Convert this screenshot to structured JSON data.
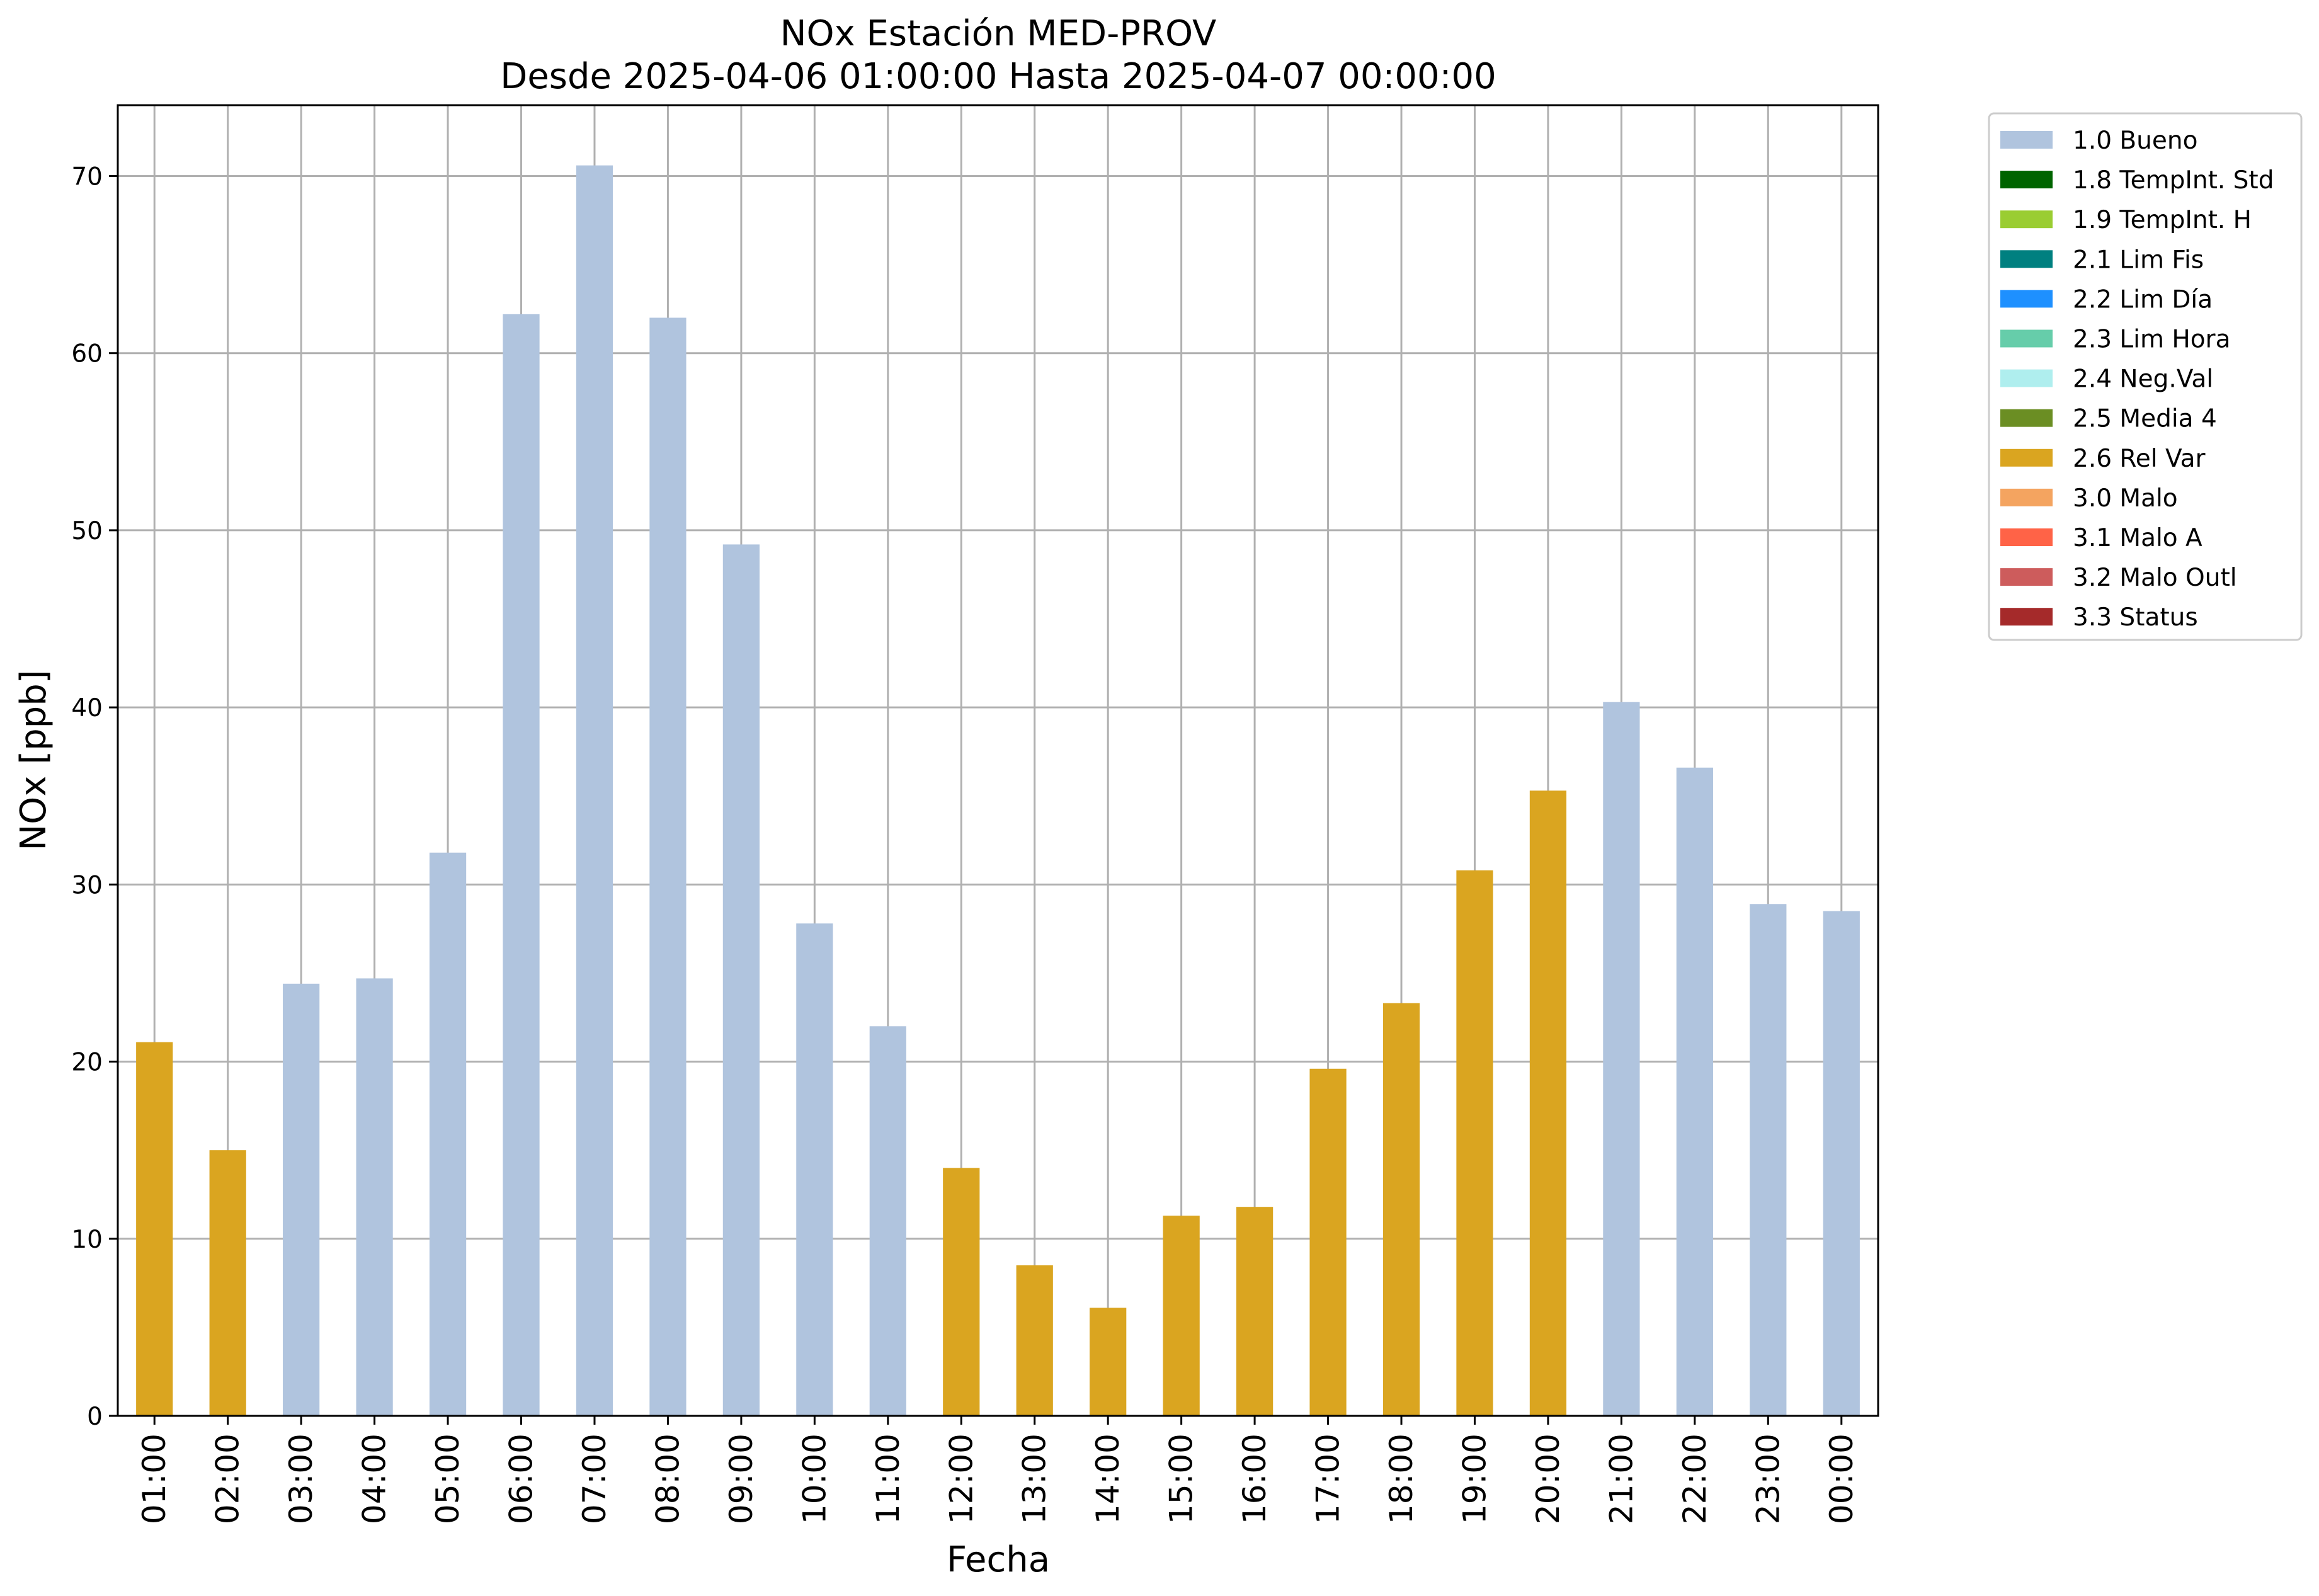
{
  "chart_data": {
    "type": "bar",
    "title": "NOx Estación MED-PROV",
    "subtitle": "Desde 2025-04-06 01:00:00 Hasta 2025-04-07 00:00:00",
    "xlabel": "Fecha",
    "ylabel": "NOx [ppb]",
    "ylim": [
      0,
      74
    ],
    "yticks": [
      0,
      10,
      20,
      30,
      40,
      50,
      60,
      70
    ],
    "grid": true,
    "legend_position": "outside-right-top",
    "categories": [
      "01:00",
      "02:00",
      "03:00",
      "04:00",
      "05:00",
      "06:00",
      "07:00",
      "08:00",
      "09:00",
      "10:00",
      "11:00",
      "12:00",
      "13:00",
      "14:00",
      "15:00",
      "16:00",
      "17:00",
      "18:00",
      "19:00",
      "20:00",
      "21:00",
      "22:00",
      "23:00",
      "00:00"
    ],
    "values": [
      21.1,
      15.0,
      24.4,
      24.7,
      31.8,
      62.2,
      70.6,
      62.0,
      49.2,
      27.8,
      22.0,
      14.0,
      8.5,
      6.1,
      11.3,
      11.8,
      19.6,
      23.3,
      30.8,
      35.3,
      40.3,
      36.6,
      28.9,
      28.5
    ],
    "flags": [
      "2.6 Rel Var",
      "2.6 Rel Var",
      "1.0 Bueno",
      "1.0 Bueno",
      "1.0 Bueno",
      "1.0 Bueno",
      "1.0 Bueno",
      "1.0 Bueno",
      "1.0 Bueno",
      "1.0 Bueno",
      "1.0 Bueno",
      "2.6 Rel Var",
      "2.6 Rel Var",
      "2.6 Rel Var",
      "2.6 Rel Var",
      "2.6 Rel Var",
      "2.6 Rel Var",
      "2.6 Rel Var",
      "2.6 Rel Var",
      "2.6 Rel Var",
      "1.0 Bueno",
      "1.0 Bueno",
      "1.0 Bueno",
      "1.0 Bueno"
    ],
    "legend": [
      {
        "label": "1.0 Bueno",
        "color": "#b0c4de"
      },
      {
        "label": "1.8 TempInt. Std",
        "color": "#006400"
      },
      {
        "label": "1.9 TempInt. H",
        "color": "#9acd32"
      },
      {
        "label": "2.1 Lim Fis",
        "color": "#008080"
      },
      {
        "label": "2.2 Lim Día",
        "color": "#1e90ff"
      },
      {
        "label": "2.3 Lim Hora",
        "color": "#66cdaa"
      },
      {
        "label": "2.4 Neg.Val",
        "color": "#afeeee"
      },
      {
        "label": "2.5 Media 4",
        "color": "#6b8e23"
      },
      {
        "label": "2.6 Rel Var",
        "color": "#daa520"
      },
      {
        "label": "3.0 Malo",
        "color": "#f4a460"
      },
      {
        "label": "3.1 Malo A",
        "color": "#ff6347"
      },
      {
        "label": "3.2 Malo Outl",
        "color": "#cd5c5c"
      },
      {
        "label": "3.3 Status",
        "color": "#a52a2a"
      }
    ]
  }
}
